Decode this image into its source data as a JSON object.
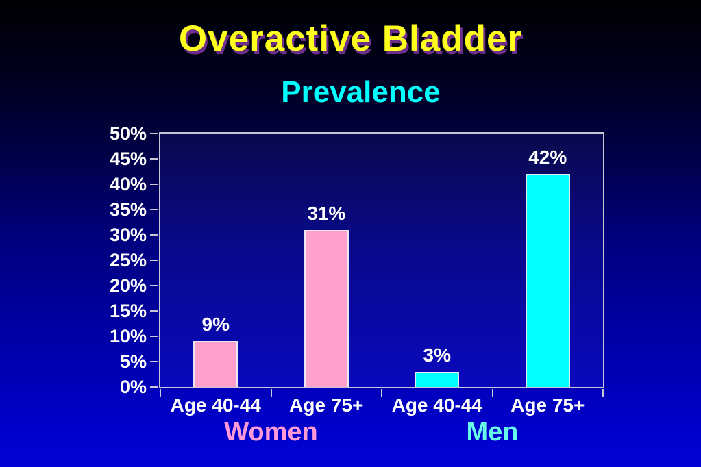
{
  "slide": {
    "title": "Overactive Bladder",
    "subtitle": "Prevalence"
  },
  "colors": {
    "background_top": "#000003",
    "background_bottom": "#0202D6",
    "title_text": "#FFFF1E",
    "title_shadow": "#6E2E8C",
    "subtitle_text": "#00FFFF",
    "axis_line": "#C6C6D4",
    "tick_label": "#FFFFFF",
    "value_label": "#FFFFFF",
    "women_bar": "#FF9FCC",
    "men_bar": "#00FFFF",
    "bar_outline": "#E8E8F4",
    "women_label": "#FF9AD9",
    "men_label": "#66F8E8"
  },
  "chart_data": {
    "type": "bar",
    "title": "Prevalence",
    "xlabel": "",
    "ylabel": "",
    "categories": [
      "Age 40-44",
      "Age 75+",
      "Age 40-44",
      "Age 75+"
    ],
    "values": [
      9,
      31,
      3,
      42
    ],
    "value_labels": [
      "9%",
      "31%",
      "3%",
      "42%"
    ],
    "bar_colors": [
      "#FF9FCC",
      "#FF9FCC",
      "#00FFFF",
      "#00FFFF"
    ],
    "groups": [
      {
        "label": "Women",
        "color": "#FF9AD9",
        "start": 0,
        "end": 1
      },
      {
        "label": "Men",
        "color": "#66F8E8",
        "start": 2,
        "end": 3
      }
    ],
    "ylim": [
      0,
      50
    ],
    "ytick_step": 5,
    "ytick_labels": [
      "0%",
      "5%",
      "10%",
      "15%",
      "20%",
      "25%",
      "30%",
      "35%",
      "40%",
      "45%",
      "50%"
    ],
    "grid": false,
    "legend": "none"
  }
}
